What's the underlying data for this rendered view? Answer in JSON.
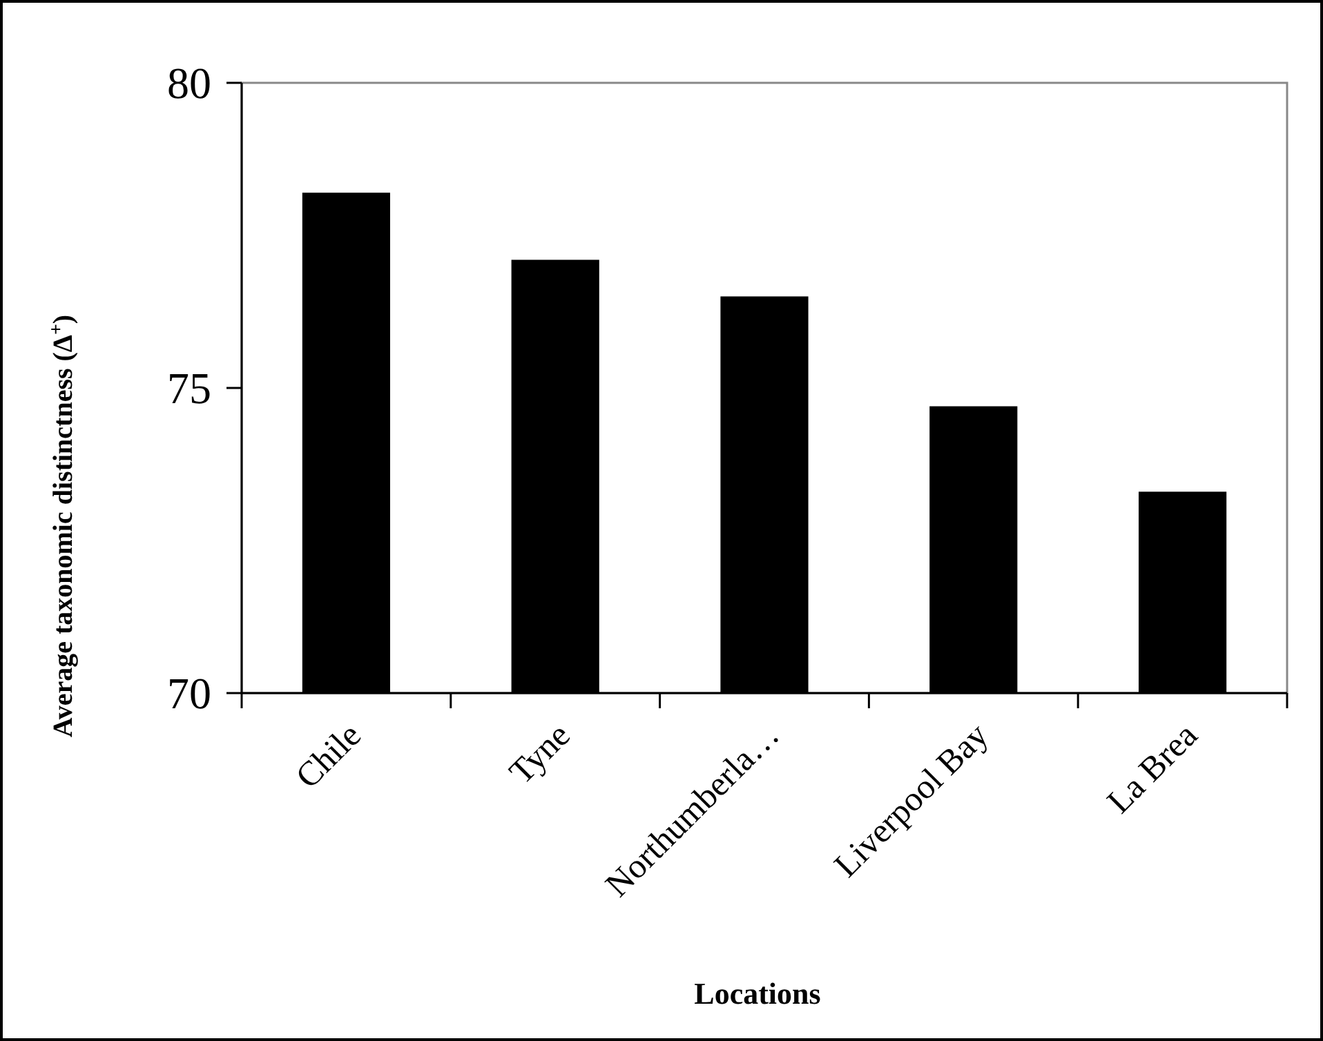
{
  "chart_data": {
    "type": "bar",
    "xlabel": "Locations",
    "ylabel": "Average taxonomic distinctness (Δ$^{+}$)",
    "categories": [
      "Chile",
      "Tyne",
      "Northumberla…",
      "Liverpool Bay",
      "La Brea"
    ],
    "values": [
      78.2,
      77.1,
      76.5,
      74.7,
      73.3
    ],
    "color": "#000000",
    "ylim": [
      70,
      80
    ],
    "yticks": [
      70,
      75,
      80
    ],
    "grid": false
  }
}
